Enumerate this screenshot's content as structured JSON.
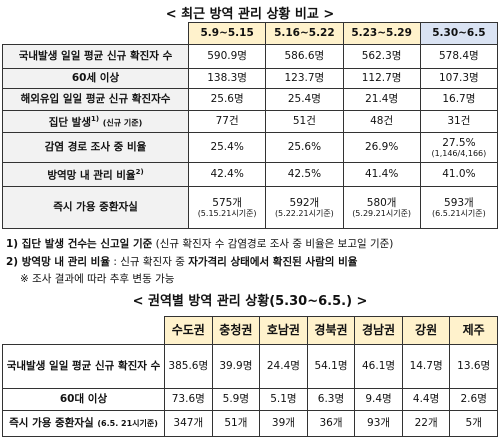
{
  "table1": {
    "title": "< 최근 방역 관리 상황 비교 >",
    "columns": [
      "5.9~5.15",
      "5.16~5.22",
      "5.23~5.29",
      "5.30~6.5"
    ],
    "rows": [
      {
        "label": "국내발생 일일 평균 신규 확진자 수",
        "cells": [
          "590.9명",
          "586.6명",
          "562.3명",
          "578.4명"
        ]
      },
      {
        "label": "60세 이상",
        "cells": [
          "138.3명",
          "123.7명",
          "112.7명",
          "107.3명"
        ]
      },
      {
        "label": "해외유입 일일 평균 신규 확진자수",
        "cells": [
          "25.6명",
          "25.4명",
          "21.4명",
          "16.7명"
        ]
      },
      {
        "label": "집단 발생",
        "sup": "1)",
        "note": "(신규 기준)",
        "cells": [
          "77건",
          "51건",
          "48건",
          "31건"
        ]
      },
      {
        "label": "감염 경로 조사 중 비율",
        "cells": [
          "25.4%",
          "25.6%",
          "26.9%",
          {
            "value": "27.5%",
            "sub": "(1,146/4,166)"
          }
        ]
      },
      {
        "label": "방역망 내 관리 비율",
        "sup": "2)",
        "cells": [
          "42.4%",
          "42.5%",
          "41.4%",
          "41.0%"
        ]
      },
      {
        "label": "즉시 가용 중환자실",
        "cells": [
          {
            "value": "575개",
            "sub": "(5.15.21시기준)"
          },
          {
            "value": "592개",
            "sub": "(5.22.21시기준)"
          },
          {
            "value": "580개",
            "sub": "(5.29.21시기준)"
          },
          {
            "value": "593개",
            "sub": "(6.5.21시기준)"
          }
        ]
      }
    ]
  },
  "notes": [
    [
      {
        "text": "1) 집단 발생 건수는 신고일 기준",
        "bold": true
      },
      {
        "text": " (신규 확진자 수 감염경로 조사 중 비율은 보고일 기준)",
        "bold": false
      }
    ],
    [
      {
        "text": "2) 방역망 내 관리 비율",
        "bold": true
      },
      {
        "text": " : 신규 확진자 중 ",
        "bold": false
      },
      {
        "text": "자가격리 상태에서 확진된 사람의 비율",
        "bold": true
      }
    ],
    [
      {
        "text": "※ 조사 결과에 따라 추후 변동 가능",
        "bold": false
      }
    ]
  ],
  "table2": {
    "title": "< 권역별 방역 관리 상황(5.30~6.5.) >",
    "columns": [
      "수도권",
      "충청권",
      "호남권",
      "경북권",
      "경남권",
      "강원",
      "제주"
    ],
    "rows": [
      {
        "label": "국내발생 일일 평균 신규 확진자 수",
        "cells": [
          "385.6명",
          "39.9명",
          "24.4명",
          "54.1명",
          "46.1명",
          "14.7명",
          "13.6명"
        ]
      },
      {
        "label": "60대 이상",
        "cells": [
          "73.6명",
          "5.9명",
          "5.1명",
          "6.3명",
          "9.4명",
          "4.4명",
          "2.6명"
        ]
      },
      {
        "label": "즉시 가용 중환자실",
        "note": "(6.5. 21시기준)",
        "cells": [
          "347개",
          "51개",
          "39개",
          "36개",
          "93개",
          "22개",
          "5개"
        ]
      }
    ]
  }
}
